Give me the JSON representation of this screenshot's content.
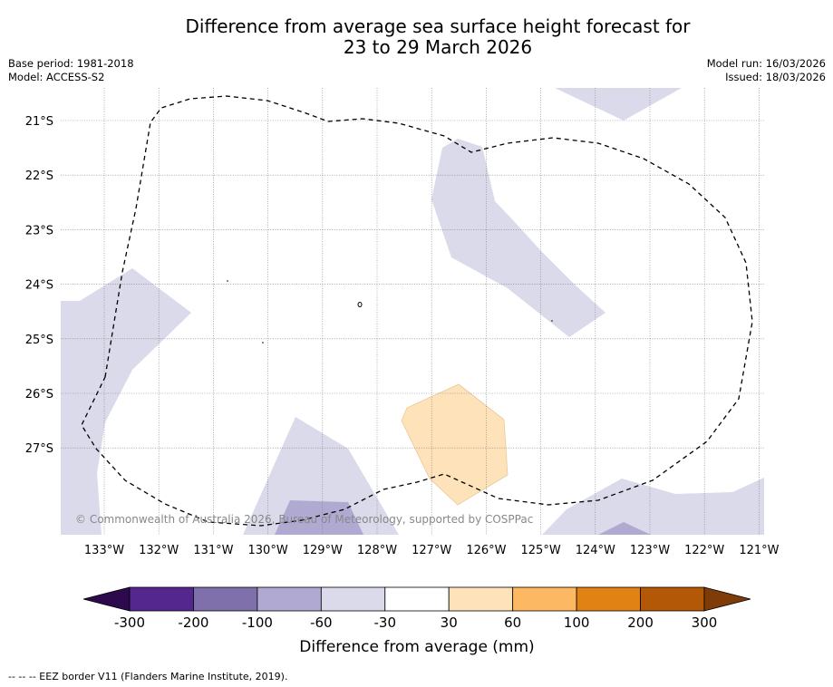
{
  "title": {
    "line1": "Difference from average sea surface height forecast for",
    "line2": "23 to 29 March 2026"
  },
  "meta": {
    "base_period": "Base period: 1981-2018",
    "model": "Model: ACCESS-S2",
    "model_run": "Model run: 16/03/2026",
    "issued": "Issued: 18/03/2026"
  },
  "map": {
    "copyright": "© Commonwealth of Australia 2026, Bureau of Meteorology, supported by COSPPac",
    "lat_labels": [
      "21°S",
      "22°S",
      "23°S",
      "24°S",
      "25°S",
      "26°S",
      "27°S"
    ],
    "lon_labels": [
      "133°W",
      "132°W",
      "131°W",
      "130°W",
      "129°W",
      "128°W",
      "127°W",
      "126°W",
      "125°W",
      "124°W",
      "123°W",
      "122°W",
      "121°W"
    ],
    "lat_range": [
      -28.3,
      -20.4
    ],
    "lon_range": [
      -133.8,
      -120.9
    ]
  },
  "legend": {
    "title": "Difference from average (mm)",
    "ticks": [
      "-300",
      "-200",
      "-100",
      "-60",
      "-30",
      "30",
      "60",
      "100",
      "200",
      "300"
    ],
    "colors": {
      "extend_low": "#2d0a4e",
      "bins": [
        "#54278f",
        "#7f70ab",
        "#b0aad2",
        "#dadaeb",
        "#ffffff",
        "#fee2b9",
        "#fdb863",
        "#e08214",
        "#b35806"
      ],
      "extend_high": "#7f3b08"
    }
  },
  "footnote": "--  --  -- EEZ border V11 (Flanders Marine Institute, 2019)."
}
